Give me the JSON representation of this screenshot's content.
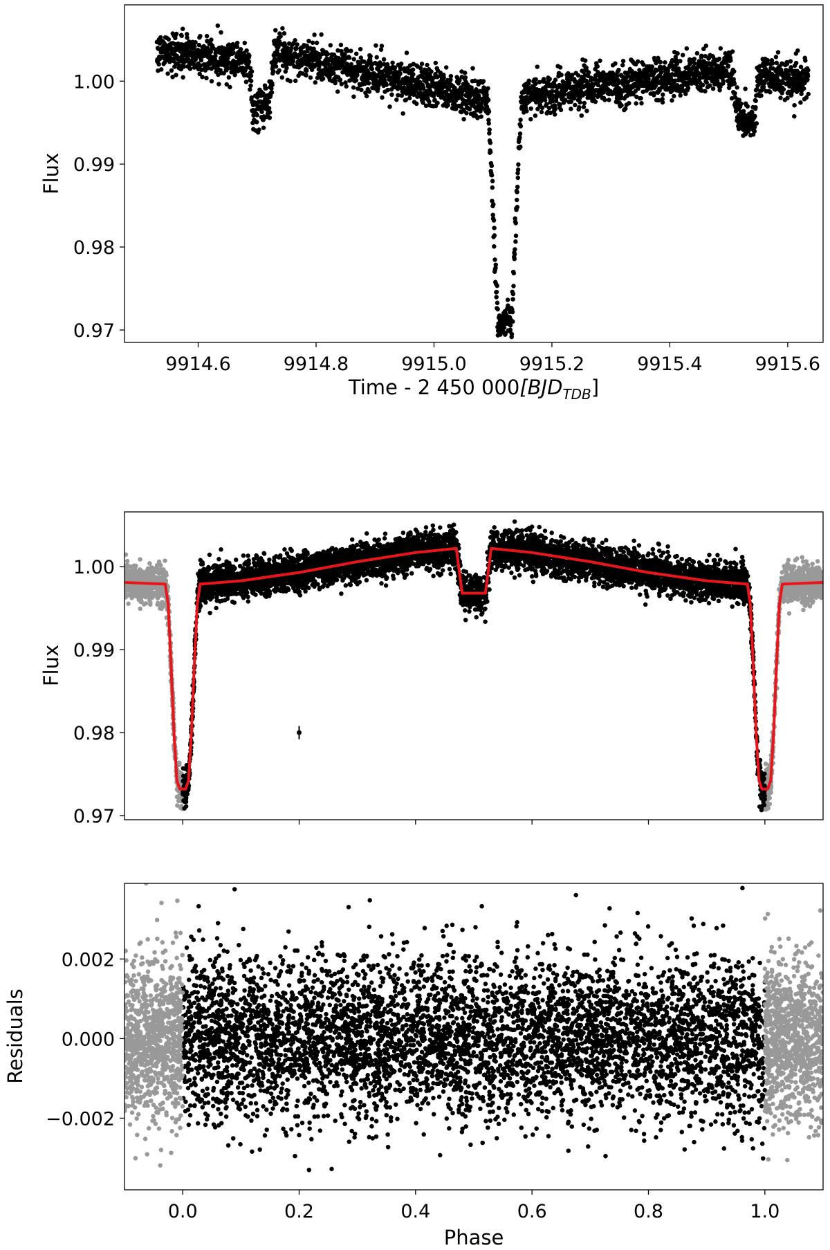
{
  "colors": {
    "data": "#000000",
    "extended_phase": "#999999",
    "model": "#e8151b",
    "axes": "#000000",
    "background": "#ffffff"
  },
  "chart_data": [
    {
      "type": "scatter",
      "panel": "light-curve-time",
      "title": "",
      "xlabel": "Time - 2 450 000",
      "xlabel_math": "[BJD",
      "xlabel_sub": "TDB",
      "xlabel_close": "]",
      "ylabel": "Flux",
      "xlim": [
        9914.475,
        9915.66
      ],
      "ylim": [
        0.9685,
        1.0092
      ],
      "xticks": [
        9914.6,
        9914.8,
        9915.0,
        9915.2,
        9915.4,
        9915.6
      ],
      "xtick_labels": [
        "9914.6",
        "9914.8",
        "9915.0",
        "9915.2",
        "9915.4",
        "9915.6"
      ],
      "yticks": [
        0.97,
        0.98,
        0.99,
        1.0
      ],
      "ytick_labels": [
        "0.97",
        "0.98",
        "0.99",
        "1.00"
      ],
      "grid": false,
      "series": [
        {
          "marker": "dot",
          "color": "#000000",
          "x_range": [
            9914.53,
            9915.635
          ],
          "features": [
            {
              "kind": "baseline",
              "x": [
                9914.53,
                9914.69,
                9914.725,
                9915.1,
                9915.14,
                9915.51,
                9915.545,
                9915.635
              ],
              "flux": [
                1.0036,
                1.0024,
                1.0036,
                0.9976,
                0.998,
                1.0016,
                1.0006,
                1.0004
              ]
            },
            {
              "kind": "secondary_eclipse",
              "x_center": 9914.707,
              "depth": 0.006
            },
            {
              "kind": "primary_eclipse",
              "x_center": 9915.12,
              "min_flux": 0.9712
            },
            {
              "kind": "secondary_eclipse",
              "x_center": 9915.528,
              "depth": 0.006
            }
          ],
          "scatter_sigma": 0.0012
        }
      ]
    },
    {
      "type": "scatter",
      "panel": "phase-folded",
      "title": "",
      "xlabel": "",
      "ylabel": "Flux",
      "xlim": [
        -0.1,
        1.1
      ],
      "ylim": [
        0.9695,
        1.0066
      ],
      "xticks": [
        0.0,
        0.2,
        0.4,
        0.6,
        0.8,
        1.0
      ],
      "yticks": [
        0.97,
        0.98,
        0.99,
        1.0
      ],
      "ytick_labels": [
        "0.97",
        "0.98",
        "0.99",
        "1.00"
      ],
      "grid": false,
      "series": [
        {
          "marker": "dot",
          "color": "#000000",
          "phase_range": [
            0.0,
            1.0
          ]
        },
        {
          "marker": "dot",
          "color": "#999999",
          "phase_range": [
            -0.1,
            0.0
          ],
          "note": "repeated phase"
        },
        {
          "marker": "dot",
          "color": "#999999",
          "phase_range": [
            1.0,
            1.1
          ],
          "note": "repeated phase"
        },
        {
          "marker": "line",
          "color": "#e8151b",
          "points": [
            [
              -0.1,
              0.9981
            ],
            [
              -0.03,
              0.9979
            ],
            [
              -0.025,
              0.9955
            ],
            [
              -0.02,
              0.9882
            ],
            [
              -0.015,
              0.98
            ],
            [
              -0.01,
              0.9742
            ],
            [
              -0.005,
              0.9732
            ],
            [
              0.005,
              0.9732
            ],
            [
              0.01,
              0.9742
            ],
            [
              0.015,
              0.98
            ],
            [
              0.02,
              0.9882
            ],
            [
              0.025,
              0.9955
            ],
            [
              0.03,
              0.9979
            ],
            [
              0.1,
              0.9983
            ],
            [
              0.2,
              0.9993
            ],
            [
              0.3,
              1.0006
            ],
            [
              0.4,
              1.0017
            ],
            [
              0.47,
              1.0022
            ],
            [
              0.48,
              0.9968
            ],
            [
              0.52,
              0.9968
            ],
            [
              0.53,
              1.0022
            ],
            [
              0.6,
              1.0017
            ],
            [
              0.7,
              1.0006
            ],
            [
              0.8,
              0.9993
            ],
            [
              0.9,
              0.9983
            ],
            [
              0.97,
              0.9979
            ],
            [
              0.975,
              0.9955
            ],
            [
              0.98,
              0.9882
            ],
            [
              0.985,
              0.98
            ],
            [
              0.99,
              0.9742
            ],
            [
              0.995,
              0.9732
            ],
            [
              1.005,
              0.9732
            ],
            [
              1.01,
              0.9742
            ],
            [
              1.015,
              0.98
            ],
            [
              1.02,
              0.9882
            ],
            [
              1.025,
              0.9955
            ],
            [
              1.03,
              0.9979
            ],
            [
              1.1,
              0.9981
            ]
          ]
        },
        {
          "marker": "errorbar",
          "color": "#000000",
          "x": 0.2,
          "y": 0.98,
          "yerr": 0.0008
        }
      ]
    },
    {
      "type": "scatter",
      "panel": "residuals",
      "title": "",
      "xlabel": "Phase",
      "ylabel": "Residuals",
      "xlim": [
        -0.1,
        1.1
      ],
      "ylim": [
        -0.0038,
        0.0039
      ],
      "xticks": [
        0.0,
        0.2,
        0.4,
        0.6,
        0.8,
        1.0
      ],
      "xtick_labels": [
        "0.0",
        "0.2",
        "0.4",
        "0.6",
        "0.8",
        "1.0"
      ],
      "yticks": [
        -0.002,
        0.0,
        0.002
      ],
      "ytick_labels": [
        "−0.002",
        "0.000",
        "0.002"
      ],
      "grid": false,
      "series": [
        {
          "marker": "dot",
          "color": "#000000",
          "phase_range": [
            0.0,
            1.0
          ],
          "scatter_sigma": 0.001
        },
        {
          "marker": "dot",
          "color": "#999999",
          "phase_range": [
            -0.1,
            0.0
          ],
          "scatter_sigma": 0.001
        },
        {
          "marker": "dot",
          "color": "#999999",
          "phase_range": [
            1.0,
            1.1
          ],
          "scatter_sigma": 0.001
        }
      ]
    }
  ]
}
